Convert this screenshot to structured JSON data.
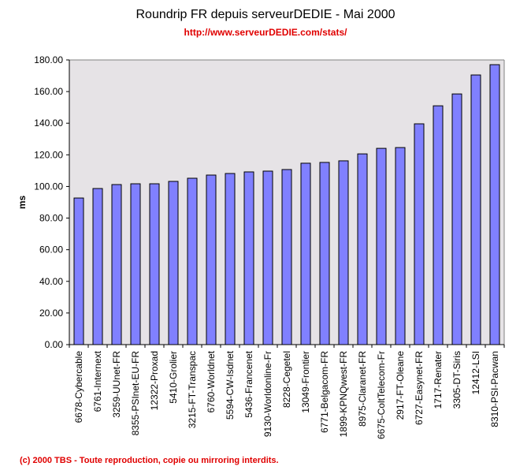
{
  "header": {
    "subtitle": "http://www.serveurDEDIE.com/stats/"
  },
  "footer": "(c) 2000 TBS - Toute reproduction, copie ou mirroring interdits.",
  "colors": {
    "bar": "#8080ff",
    "plot_bg": "#e6e3e6",
    "accent_red": "#e00000"
  },
  "chart_data": {
    "type": "bar",
    "title": "Roundrip FR depuis serveurDEDIE - Mai 2000",
    "xlabel": "",
    "ylabel": "ms",
    "ylim": [
      0,
      180
    ],
    "yticks": [
      "0.00",
      "20.00",
      "40.00",
      "60.00",
      "80.00",
      "100.00",
      "120.00",
      "140.00",
      "160.00",
      "180.00"
    ],
    "grid": false,
    "legend": "none",
    "categories": [
      "6678-Cybercable",
      "6761-Internext",
      "3259-UUnet-FR",
      "8355-PSInet-EU-FR",
      "12322-Proxad",
      "5410-Grolier",
      "3215-FT-Transpac",
      "6760-Worldnet",
      "5594-CW-Isdnet",
      "5436-Francenet",
      "9130-Worldonline-Fr",
      "8228-Cegetel",
      "13049-Frontier",
      "6771-Belgacom-FR",
      "1899-KPNQwest-FR",
      "8975-Claranet-FR",
      "6675-ColtTelecom-Fr",
      "2917-FT-Oleane",
      "6727-Easynet-FR",
      "1717-Renater",
      "3305-DT-Siris",
      "12412-LSI",
      "8310-PSI-Pacwan"
    ],
    "values": [
      92.7,
      98.7,
      101.2,
      101.7,
      101.7,
      103.2,
      105.2,
      107.2,
      108.2,
      109.2,
      109.7,
      110.7,
      114.7,
      115.2,
      116.2,
      120.6,
      124.1,
      124.6,
      139.6,
      151.0,
      158.5,
      170.5,
      177.0
    ]
  }
}
